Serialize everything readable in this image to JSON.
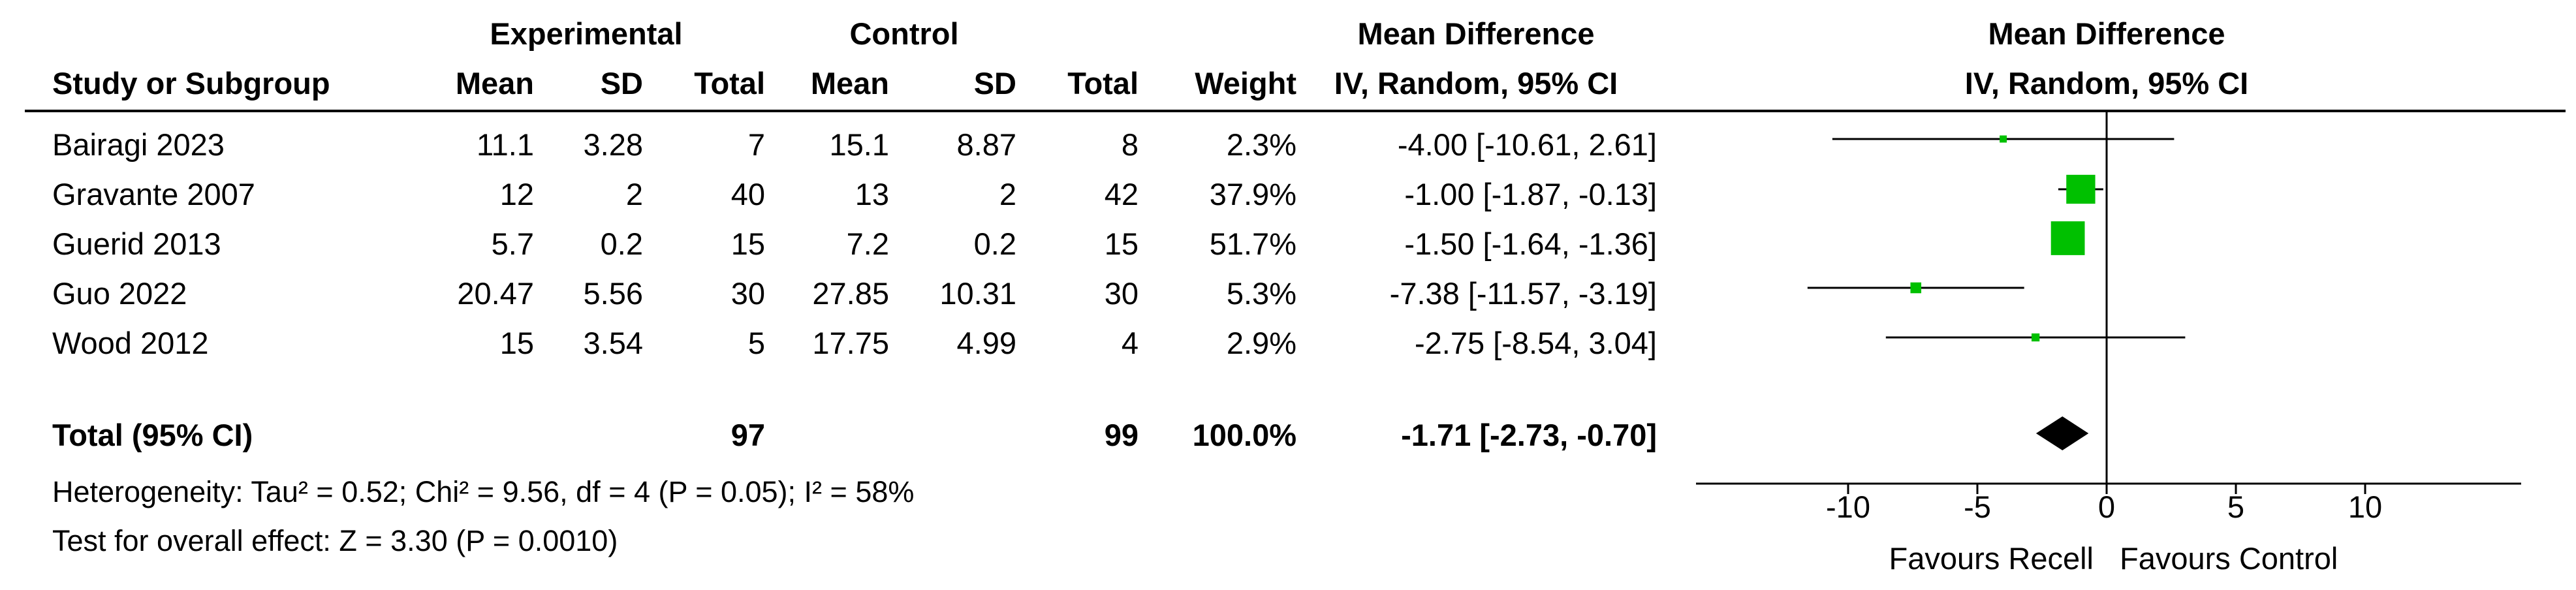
{
  "header": {
    "group_experimental": "Experimental",
    "group_control": "Control",
    "group_effect": "Mean Difference",
    "study_col": "Study or Subgroup",
    "mean": "Mean",
    "sd": "SD",
    "total": "Total",
    "weight": "Weight",
    "ci_col": "IV, Random, 95% CI",
    "plot_title": "Mean Difference",
    "plot_subtitle": "IV, Random, 95% CI"
  },
  "studies": [
    {
      "name": "Bairagi 2023",
      "exp_mean": "11.1",
      "exp_sd": "3.28",
      "exp_total": "7",
      "ctl_mean": "15.1",
      "ctl_sd": "8.87",
      "ctl_total": "8",
      "weight": "2.3%",
      "ci_text": "-4.00 [-10.61, 2.61]"
    },
    {
      "name": "Gravante 2007",
      "exp_mean": "12",
      "exp_sd": "2",
      "exp_total": "40",
      "ctl_mean": "13",
      "ctl_sd": "2",
      "ctl_total": "42",
      "weight": "37.9%",
      "ci_text": "-1.00 [-1.87, -0.13]"
    },
    {
      "name": "Guerid 2013",
      "exp_mean": "5.7",
      "exp_sd": "0.2",
      "exp_total": "15",
      "ctl_mean": "7.2",
      "ctl_sd": "0.2",
      "ctl_total": "15",
      "weight": "51.7%",
      "ci_text": "-1.50 [-1.64, -1.36]"
    },
    {
      "name": "Guo 2022",
      "exp_mean": "20.47",
      "exp_sd": "5.56",
      "exp_total": "30",
      "ctl_mean": "27.85",
      "ctl_sd": "10.31",
      "ctl_total": "30",
      "weight": "5.3%",
      "ci_text": "-7.38 [-11.57, -3.19]"
    },
    {
      "name": "Wood 2012",
      "exp_mean": "15",
      "exp_sd": "3.54",
      "exp_total": "5",
      "ctl_mean": "17.75",
      "ctl_sd": "4.99",
      "ctl_total": "4",
      "weight": "2.9%",
      "ci_text": "-2.75 [-8.54, 3.04]"
    }
  ],
  "total_row": {
    "label": "Total (95% CI)",
    "exp_total": "97",
    "ctl_total": "99",
    "weight": "100.0%",
    "ci_text": "-1.71 [-2.73, -0.70]"
  },
  "footnotes": {
    "heterogeneity": "Heterogeneity: Tau² = 0.52; Chi² = 9.56, df = 4 (P = 0.05); I² = 58%",
    "overall": "Test for overall effect: Z = 3.30 (P = 0.0010)"
  },
  "chart_data": {
    "type": "forest",
    "xlim": [
      -10,
      10
    ],
    "ticks": [
      -10,
      -5,
      0,
      5,
      10
    ],
    "xlabel_left": "Favours Recell",
    "xlabel_right": "Favours Control",
    "study_color": "#00c000",
    "summary_color": "#000000",
    "points": [
      {
        "study": "Bairagi 2023",
        "md": -4.0,
        "lo": -10.61,
        "hi": 2.61,
        "weight": 2.3
      },
      {
        "study": "Gravante 2007",
        "md": -1.0,
        "lo": -1.87,
        "hi": -0.13,
        "weight": 37.9
      },
      {
        "study": "Guerid 2013",
        "md": -1.5,
        "lo": -1.64,
        "hi": -1.36,
        "weight": 51.7
      },
      {
        "study": "Guo 2022",
        "md": -7.38,
        "lo": -11.57,
        "hi": -3.19,
        "weight": 5.3
      },
      {
        "study": "Wood 2012",
        "md": -2.75,
        "lo": -8.54,
        "hi": 3.04,
        "weight": 2.9
      }
    ],
    "summary": {
      "md": -1.71,
      "lo": -2.73,
      "hi": -0.7
    }
  }
}
